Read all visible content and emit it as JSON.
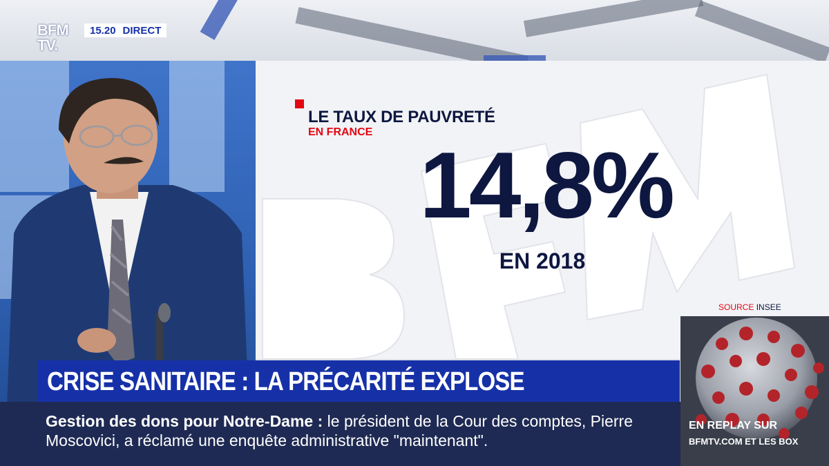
{
  "channel": {
    "logo_line1": "BFM",
    "logo_line2": "TV.",
    "time": "15.20",
    "live_label": "DIRECT"
  },
  "graphic": {
    "title": "LE TAUX DE PAUVRETÉ",
    "subtitle": "EN FRANCE",
    "value": "14,8%",
    "year": "EN 2018",
    "source_label": "SOURCE",
    "source_value": "INSEE"
  },
  "banner": {
    "headline": "CRISE SANITAIRE : LA PRÉCARITÉ EXPLOSE"
  },
  "ticker": {
    "topic": "Gestion des dons pour Notre-Dame",
    "separator": " : ",
    "text": "le président de la Cour des comptes, Pierre Moscovici, a réclamé une enquête administrative \"maintenant\"."
  },
  "replay": {
    "line1": "EN REPLAY SUR",
    "line2": "BFMTV.COM ET LES BOX"
  },
  "colors": {
    "brand_blue": "#1631a8",
    "accent_red": "#e30613",
    "navy_text": "#0d1740",
    "ticker_bg": "#1e2a53"
  }
}
